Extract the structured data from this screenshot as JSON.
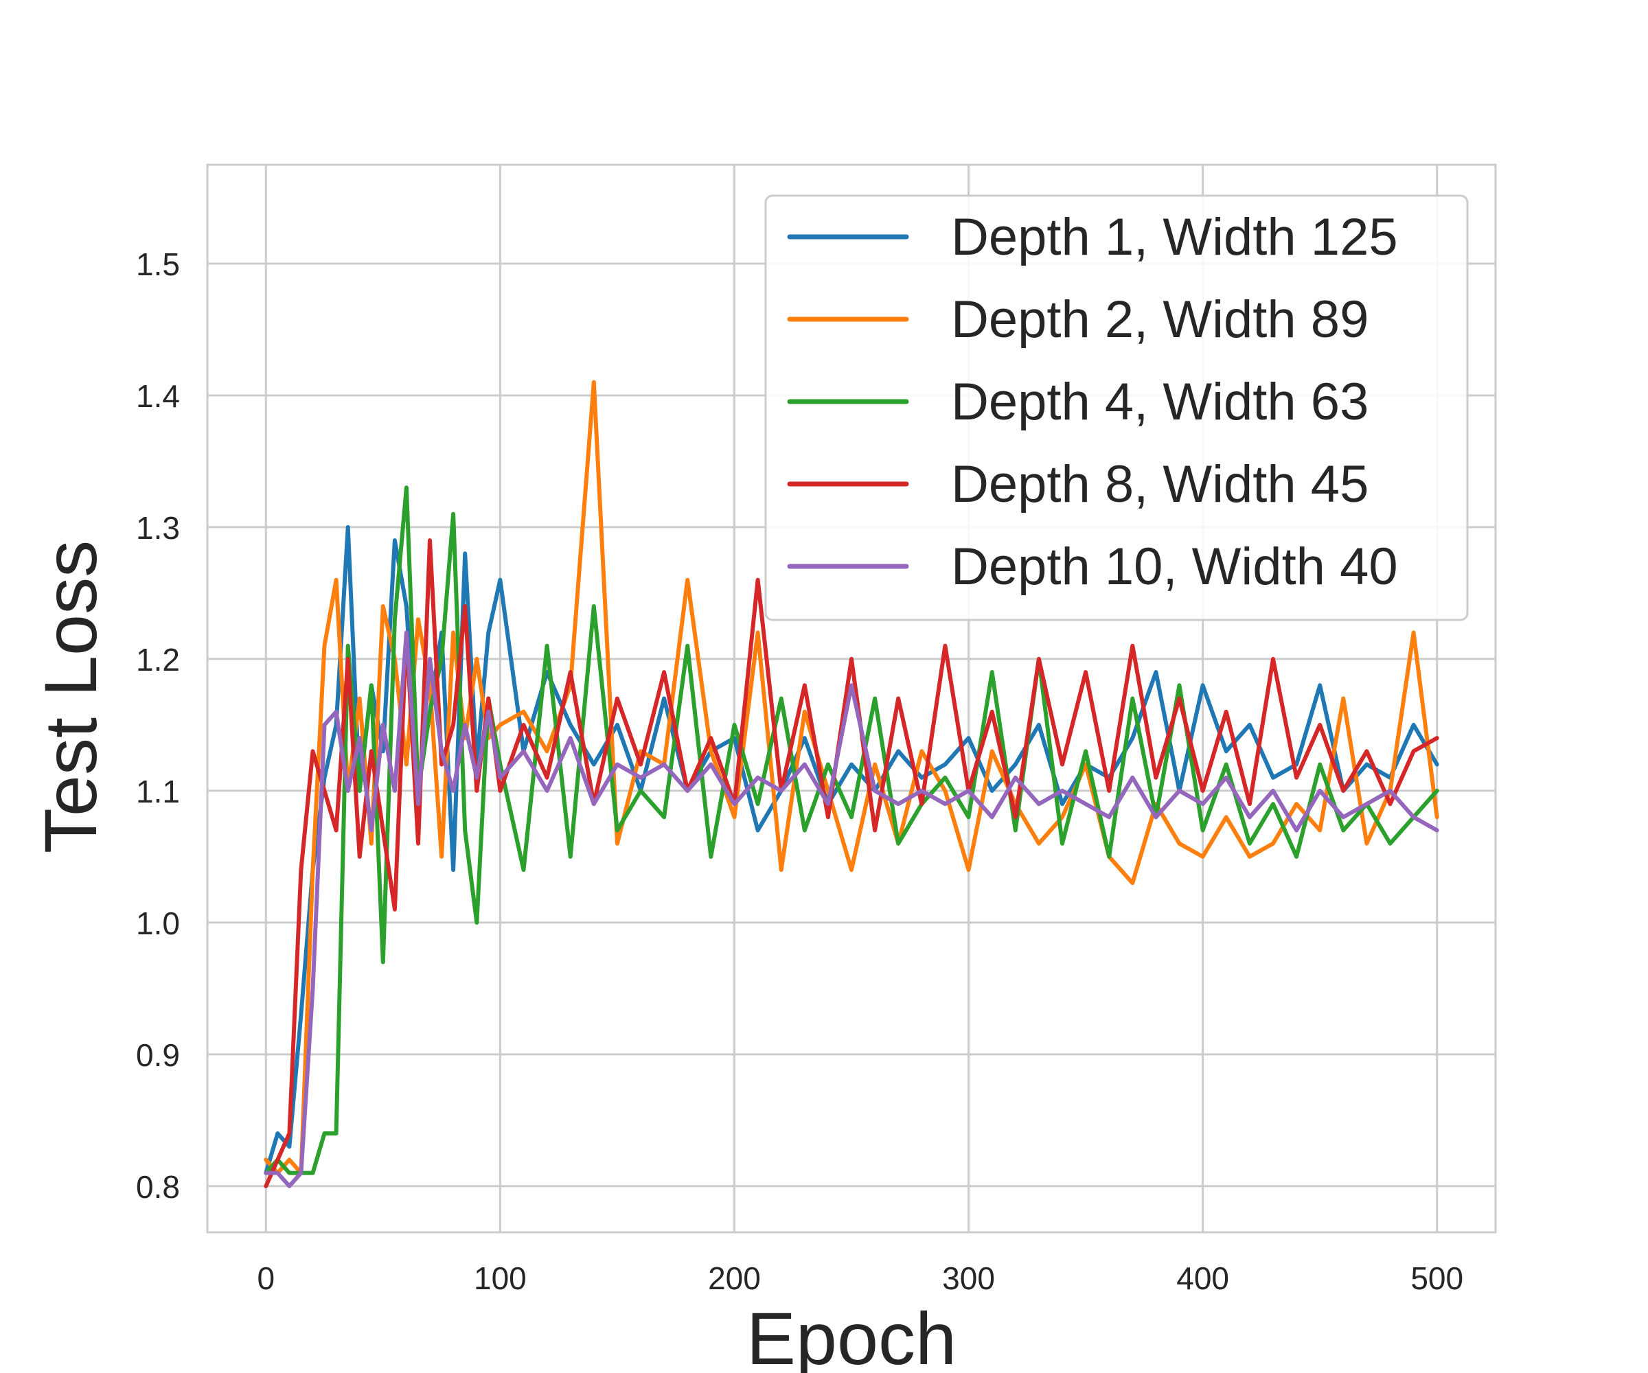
{
  "chart_data": {
    "type": "line",
    "title": "",
    "xlabel": "Epoch",
    "ylabel": "Test Loss",
    "xlim": [
      -25,
      525
    ],
    "ylim": [
      0.765,
      1.575
    ],
    "xticks": [
      0,
      100,
      200,
      300,
      400,
      500
    ],
    "yticks": [
      0.8,
      0.9,
      1.0,
      1.1,
      1.2,
      1.3,
      1.4,
      1.5
    ],
    "xtick_labels": [
      "0",
      "100",
      "200",
      "300",
      "400",
      "500"
    ],
    "ytick_labels": [
      "0.8",
      "0.9",
      "1.0",
      "1.1",
      "1.2",
      "1.3",
      "1.4",
      "1.5"
    ],
    "grid": true,
    "legend_position": "top-right",
    "x": [
      0,
      5,
      10,
      15,
      20,
      25,
      30,
      35,
      40,
      45,
      50,
      55,
      60,
      65,
      70,
      75,
      80,
      85,
      90,
      95,
      100,
      110,
      120,
      130,
      140,
      150,
      160,
      170,
      180,
      190,
      200,
      210,
      220,
      230,
      240,
      250,
      260,
      270,
      280,
      290,
      300,
      310,
      320,
      330,
      340,
      350,
      360,
      370,
      380,
      390,
      400,
      410,
      420,
      430,
      440,
      450,
      460,
      470,
      480,
      490,
      500
    ],
    "series": [
      {
        "name": "Depth 1, Width 125",
        "color": "#1f77b4",
        "values": [
          0.81,
          0.84,
          0.83,
          0.93,
          1.04,
          1.11,
          1.15,
          1.3,
          1.1,
          1.18,
          1.13,
          1.29,
          1.24,
          1.1,
          1.16,
          1.22,
          1.04,
          1.28,
          1.12,
          1.22,
          1.26,
          1.13,
          1.19,
          1.15,
          1.12,
          1.15,
          1.1,
          1.17,
          1.1,
          1.13,
          1.14,
          1.07,
          1.1,
          1.14,
          1.09,
          1.12,
          1.1,
          1.13,
          1.11,
          1.12,
          1.14,
          1.1,
          1.12,
          1.15,
          1.09,
          1.12,
          1.11,
          1.14,
          1.19,
          1.1,
          1.18,
          1.13,
          1.15,
          1.11,
          1.12,
          1.18,
          1.1,
          1.12,
          1.11,
          1.15,
          1.12
        ]
      },
      {
        "name": "Depth 2, Width 89",
        "color": "#ff7f0e",
        "values": [
          0.82,
          0.81,
          0.82,
          0.81,
          1.04,
          1.21,
          1.26,
          1.1,
          1.17,
          1.06,
          1.24,
          1.2,
          1.12,
          1.23,
          1.18,
          1.05,
          1.22,
          1.14,
          1.2,
          1.14,
          1.15,
          1.16,
          1.13,
          1.18,
          1.41,
          1.06,
          1.13,
          1.12,
          1.26,
          1.13,
          1.08,
          1.22,
          1.04,
          1.16,
          1.1,
          1.04,
          1.12,
          1.06,
          1.13,
          1.1,
          1.04,
          1.13,
          1.09,
          1.06,
          1.08,
          1.12,
          1.05,
          1.03,
          1.09,
          1.06,
          1.05,
          1.08,
          1.05,
          1.06,
          1.09,
          1.07,
          1.17,
          1.06,
          1.1,
          1.22,
          1.08
        ]
      },
      {
        "name": "Depth 4, Width 63",
        "color": "#2ca02c",
        "values": [
          0.81,
          0.82,
          0.81,
          0.81,
          0.81,
          0.84,
          0.84,
          1.21,
          1.1,
          1.18,
          0.97,
          1.23,
          1.33,
          1.1,
          1.16,
          1.2,
          1.31,
          1.07,
          1.0,
          1.17,
          1.12,
          1.04,
          1.21,
          1.05,
          1.24,
          1.07,
          1.1,
          1.08,
          1.21,
          1.05,
          1.15,
          1.09,
          1.17,
          1.07,
          1.12,
          1.08,
          1.17,
          1.06,
          1.09,
          1.11,
          1.08,
          1.19,
          1.07,
          1.2,
          1.06,
          1.13,
          1.05,
          1.17,
          1.08,
          1.18,
          1.07,
          1.12,
          1.06,
          1.09,
          1.05,
          1.12,
          1.07,
          1.09,
          1.06,
          1.08,
          1.1
        ]
      },
      {
        "name": "Depth 8, Width 45",
        "color": "#d62728",
        "values": [
          0.8,
          0.82,
          0.84,
          1.04,
          1.13,
          1.1,
          1.07,
          1.2,
          1.05,
          1.13,
          1.07,
          1.01,
          1.22,
          1.06,
          1.29,
          1.12,
          1.15,
          1.24,
          1.1,
          1.17,
          1.1,
          1.15,
          1.11,
          1.19,
          1.09,
          1.17,
          1.12,
          1.19,
          1.1,
          1.14,
          1.09,
          1.26,
          1.1,
          1.18,
          1.08,
          1.2,
          1.07,
          1.17,
          1.09,
          1.21,
          1.1,
          1.16,
          1.08,
          1.2,
          1.12,
          1.19,
          1.1,
          1.21,
          1.11,
          1.17,
          1.1,
          1.16,
          1.09,
          1.2,
          1.11,
          1.15,
          1.1,
          1.13,
          1.09,
          1.13,
          1.14
        ]
      },
      {
        "name": "Depth 10, Width 40",
        "color": "#9467bd",
        "values": [
          0.81,
          0.81,
          0.8,
          0.81,
          0.95,
          1.15,
          1.16,
          1.1,
          1.14,
          1.07,
          1.15,
          1.1,
          1.22,
          1.09,
          1.2,
          1.13,
          1.1,
          1.15,
          1.11,
          1.16,
          1.11,
          1.13,
          1.1,
          1.14,
          1.09,
          1.12,
          1.11,
          1.12,
          1.1,
          1.12,
          1.09,
          1.11,
          1.1,
          1.12,
          1.09,
          1.18,
          1.1,
          1.09,
          1.1,
          1.09,
          1.1,
          1.08,
          1.11,
          1.09,
          1.1,
          1.09,
          1.08,
          1.11,
          1.08,
          1.1,
          1.09,
          1.11,
          1.08,
          1.1,
          1.07,
          1.1,
          1.08,
          1.09,
          1.1,
          1.08,
          1.07
        ]
      }
    ]
  }
}
